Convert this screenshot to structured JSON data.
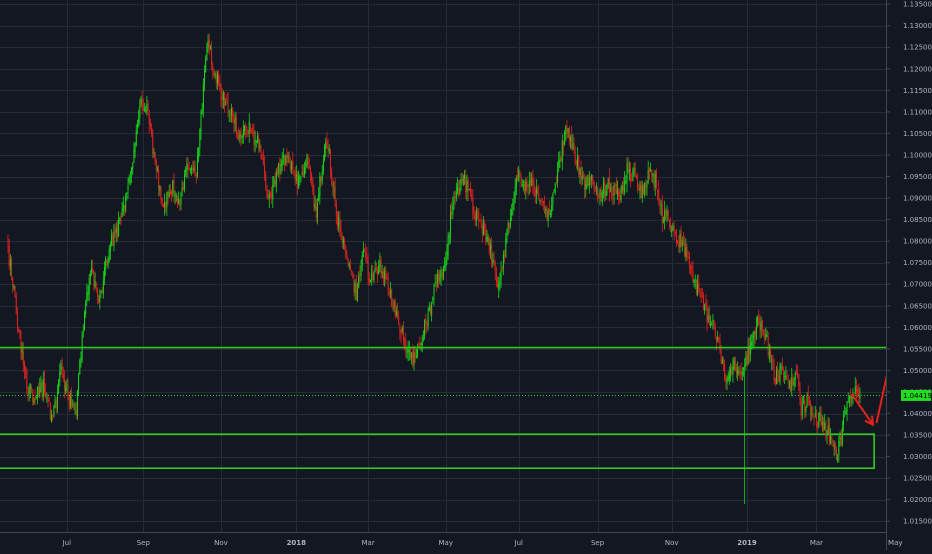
{
  "chart_data": {
    "type": "candlestick",
    "title": "",
    "ylim": [
      1.0125,
      1.1355
    ],
    "y_ticks": [
      1.135,
      1.13,
      1.125,
      1.12,
      1.115,
      1.11,
      1.105,
      1.1,
      1.095,
      1.09,
      1.085,
      1.08,
      1.075,
      1.07,
      1.065,
      1.06,
      1.055,
      1.05,
      1.045,
      1.04,
      1.035,
      1.03,
      1.025,
      1.02,
      1.015
    ],
    "y_tick_labels": [
      "1.13500",
      "1.13000",
      "1.12500",
      "1.12000",
      "1.11500",
      "1.11000",
      "1.10500",
      "1.10000",
      "1.09500",
      "1.09000",
      "1.08500",
      "1.08000",
      "1.07500",
      "1.07000",
      "1.06500",
      "1.06000",
      "1.05500",
      "1.05000",
      "1.04500",
      "1.04000",
      "1.03500",
      "1.03000",
      "1.02500",
      "1.02000",
      "1.01500"
    ],
    "x_ticks": [
      {
        "label": "Jul",
        "index": 50,
        "bold": false
      },
      {
        "label": "Sep",
        "index": 115,
        "bold": false
      },
      {
        "label": "Nov",
        "index": 181,
        "bold": false
      },
      {
        "label": "2018",
        "index": 245,
        "bold": true
      },
      {
        "label": "Mar",
        "index": 306,
        "bold": false
      },
      {
        "label": "May",
        "index": 372,
        "bold": false
      },
      {
        "label": "Jul",
        "index": 434,
        "bold": false
      },
      {
        "label": "Sep",
        "index": 501,
        "bold": false
      },
      {
        "label": "Nov",
        "index": 564,
        "bold": false
      },
      {
        "label": "2019",
        "index": 628,
        "bold": true
      },
      {
        "label": "Mar",
        "index": 687,
        "bold": false
      },
      {
        "label": "May",
        "index": 754,
        "bold": false
      }
    ],
    "bar_count": 725,
    "close_anchors": [
      [
        0,
        1.078
      ],
      [
        8,
        1.062
      ],
      [
        16,
        1.046
      ],
      [
        22,
        1.044
      ],
      [
        30,
        1.046
      ],
      [
        38,
        1.038
      ],
      [
        45,
        1.05
      ],
      [
        52,
        1.043
      ],
      [
        58,
        1.04
      ],
      [
        63,
        1.058
      ],
      [
        70,
        1.073
      ],
      [
        78,
        1.066
      ],
      [
        86,
        1.079
      ],
      [
        95,
        1.084
      ],
      [
        104,
        1.095
      ],
      [
        112,
        1.112
      ],
      [
        118,
        1.11
      ],
      [
        124,
        1.1
      ],
      [
        132,
        1.088
      ],
      [
        140,
        1.093
      ],
      [
        146,
        1.088
      ],
      [
        152,
        1.098
      ],
      [
        160,
        1.095
      ],
      [
        166,
        1.116
      ],
      [
        170,
        1.126
      ],
      [
        176,
        1.119
      ],
      [
        184,
        1.112
      ],
      [
        192,
        1.108
      ],
      [
        198,
        1.104
      ],
      [
        206,
        1.107
      ],
      [
        214,
        1.101
      ],
      [
        222,
        1.089
      ],
      [
        230,
        1.097
      ],
      [
        238,
        1.099
      ],
      [
        246,
        1.093
      ],
      [
        254,
        1.098
      ],
      [
        262,
        1.087
      ],
      [
        268,
        1.1
      ],
      [
        272,
        1.103
      ],
      [
        278,
        1.088
      ],
      [
        284,
        1.08
      ],
      [
        290,
        1.073
      ],
      [
        296,
        1.068
      ],
      [
        302,
        1.077
      ],
      [
        308,
        1.071
      ],
      [
        316,
        1.074
      ],
      [
        322,
        1.07
      ],
      [
        330,
        1.062
      ],
      [
        336,
        1.058
      ],
      [
        342,
        1.052
      ],
      [
        350,
        1.056
      ],
      [
        358,
        1.064
      ],
      [
        364,
        1.07
      ],
      [
        370,
        1.073
      ],
      [
        376,
        1.085
      ],
      [
        382,
        1.092
      ],
      [
        388,
        1.094
      ],
      [
        396,
        1.087
      ],
      [
        404,
        1.082
      ],
      [
        410,
        1.078
      ],
      [
        416,
        1.069
      ],
      [
        422,
        1.078
      ],
      [
        428,
        1.088
      ],
      [
        434,
        1.096
      ],
      [
        440,
        1.092
      ],
      [
        446,
        1.094
      ],
      [
        452,
        1.089
      ],
      [
        458,
        1.085
      ],
      [
        464,
        1.091
      ],
      [
        470,
        1.1
      ],
      [
        474,
        1.107
      ],
      [
        478,
        1.103
      ],
      [
        484,
        1.098
      ],
      [
        490,
        1.092
      ],
      [
        496,
        1.096
      ],
      [
        502,
        1.09
      ],
      [
        508,
        1.093
      ],
      [
        514,
        1.092
      ],
      [
        520,
        1.09
      ],
      [
        526,
        1.096
      ],
      [
        532,
        1.095
      ],
      [
        538,
        1.091
      ],
      [
        544,
        1.095
      ],
      [
        550,
        1.094
      ],
      [
        556,
        1.086
      ],
      [
        562,
        1.085
      ],
      [
        568,
        1.081
      ],
      [
        574,
        1.079
      ],
      [
        580,
        1.074
      ],
      [
        586,
        1.069
      ],
      [
        592,
        1.064
      ],
      [
        598,
        1.061
      ],
      [
        604,
        1.056
      ],
      [
        610,
        1.047
      ],
      [
        616,
        1.051
      ],
      [
        622,
        1.05
      ],
      [
        628,
        1.053
      ],
      [
        632,
        1.057
      ],
      [
        636,
        1.061
      ],
      [
        640,
        1.06
      ],
      [
        644,
        1.058
      ],
      [
        648,
        1.052
      ],
      [
        652,
        1.048
      ],
      [
        658,
        1.05
      ],
      [
        664,
        1.047
      ],
      [
        670,
        1.049
      ],
      [
        674,
        1.041
      ],
      [
        680,
        1.043
      ],
      [
        686,
        1.039
      ],
      [
        692,
        1.038
      ],
      [
        696,
        1.036
      ],
      [
        700,
        1.033
      ],
      [
        704,
        1.03
      ],
      [
        708,
        1.034
      ],
      [
        712,
        1.042
      ],
      [
        716,
        1.0445
      ],
      [
        724,
        1.04419
      ]
    ],
    "last_price": 1.04419,
    "last_price_label": "1.04419",
    "horizontal_lines": [
      {
        "price": 1.0553,
        "color": "#2ece16"
      }
    ],
    "last_price_line_color": "#2ece16",
    "zones": [
      {
        "from_index": -10,
        "to_index": 736,
        "top": 1.0352,
        "bottom": 1.0273,
        "color": "#2ece16"
      }
    ],
    "arrows": [
      {
        "from": [
          717,
          1.0445
        ],
        "to": [
          735,
          1.0374
        ],
        "color": "#e0241c"
      },
      {
        "from": [
          738,
          1.0378
        ],
        "to": [
          752,
          1.0552
        ],
        "color": "#e0241c"
      }
    ],
    "wick_spikes": [
      {
        "index": 626,
        "low": 1.019
      }
    ],
    "colors": {
      "background": "#131722",
      "grid": "#262b3a",
      "axis_text": "#b2b5be",
      "bull": "#18d51a",
      "bear": "#e0231e",
      "price_tag_bg": "#20dd20",
      "price_tag_text": "#000000"
    },
    "grid": true
  }
}
